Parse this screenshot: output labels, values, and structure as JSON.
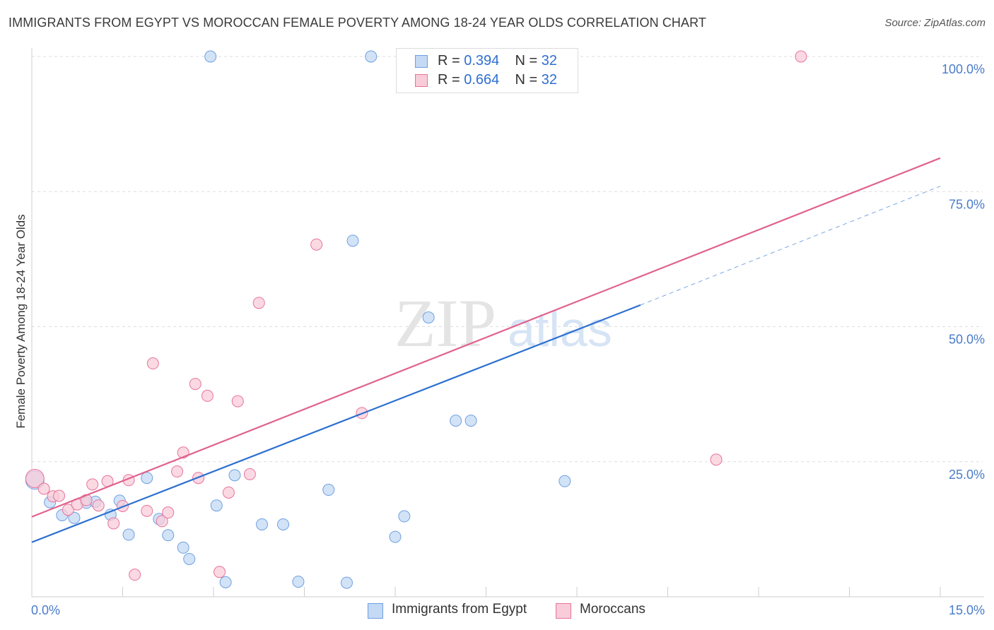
{
  "title": "IMMIGRANTS FROM EGYPT VS MOROCCAN FEMALE POVERTY AMONG 18-24 YEAR OLDS CORRELATION CHART",
  "source": "Source: ZipAtlas.com",
  "watermark": {
    "zip": "ZIP",
    "atlas": "atlas"
  },
  "legend_top": [
    {
      "r_label": "R = ",
      "r_value": "0.394",
      "n_label": "N = ",
      "n_value": "32",
      "color": "#a8c8f0"
    },
    {
      "r_label": "R = ",
      "r_value": "0.664",
      "n_label": "N = ",
      "n_value": "32",
      "color": "#f5b8cb"
    }
  ],
  "legend_bottom": [
    {
      "label": "Immigrants from Egypt",
      "color": "#a8c8f0"
    },
    {
      "label": "Moroccans",
      "color": "#f5b8cb"
    }
  ],
  "chart_data": {
    "type": "scatter",
    "title": "IMMIGRANTS FROM EGYPT VS MOROCCAN FEMALE POVERTY AMONG 18-24 YEAR OLDS CORRELATION CHART",
    "xlabel": "",
    "ylabel": "Female Poverty Among 18-24 Year Olds",
    "xlim": [
      0,
      15
    ],
    "ylim": [
      0,
      100
    ],
    "x_tick_labels": [
      {
        "value": 0,
        "label": "0.0%"
      },
      {
        "value": 15,
        "label": "15.0%"
      }
    ],
    "y_tick_labels": [
      {
        "value": 25,
        "label": "25.0%"
      },
      {
        "value": 50,
        "label": "50.0%"
      },
      {
        "value": 75,
        "label": "75.0%"
      },
      {
        "value": 100,
        "label": "100.0%"
      }
    ],
    "grid": true,
    "legend_position": "top-center",
    "series": [
      {
        "name": "Immigrants from Egypt",
        "color": "#6f9fe0",
        "fill": "#c3d9f4",
        "points": [
          [
            0.05,
            21.6
          ],
          [
            0.3,
            17.5
          ],
          [
            0.5,
            15.1
          ],
          [
            0.7,
            14.6
          ],
          [
            0.9,
            17.4
          ],
          [
            1.05,
            17.6
          ],
          [
            1.3,
            15.2
          ],
          [
            1.45,
            17.8
          ],
          [
            1.6,
            11.5
          ],
          [
            1.9,
            22.0
          ],
          [
            2.1,
            14.4
          ],
          [
            2.25,
            11.4
          ],
          [
            2.5,
            9.1
          ],
          [
            2.6,
            7.0
          ],
          [
            2.95,
            100
          ],
          [
            3.05,
            16.9
          ],
          [
            3.2,
            2.7
          ],
          [
            3.35,
            22.5
          ],
          [
            3.8,
            13.4
          ],
          [
            4.15,
            13.4
          ],
          [
            4.4,
            2.8
          ],
          [
            4.9,
            19.8
          ],
          [
            5.2,
            2.6
          ],
          [
            5.3,
            65.9
          ],
          [
            5.6,
            100
          ],
          [
            6.0,
            11.1
          ],
          [
            6.15,
            14.9
          ],
          [
            6.55,
            51.7
          ],
          [
            7.0,
            32.6
          ],
          [
            7.25,
            32.6
          ],
          [
            8.45,
            100
          ],
          [
            8.8,
            21.4
          ]
        ],
        "trend": {
          "x0": 0,
          "y0": 10.1,
          "x1": 10.05,
          "y1": 54.0,
          "dash_x1": 15.0,
          "dash_y1": 76.0
        }
      },
      {
        "name": "Moroccans",
        "color": "#e8739a",
        "fill": "#f8ccd9",
        "points": [
          [
            0.05,
            21.9
          ],
          [
            0.2,
            20.0
          ],
          [
            0.35,
            18.6
          ],
          [
            0.45,
            18.7
          ],
          [
            0.6,
            16.1
          ],
          [
            0.75,
            17.1
          ],
          [
            0.9,
            17.9
          ],
          [
            1.0,
            20.8
          ],
          [
            1.1,
            16.9
          ],
          [
            1.35,
            13.6
          ],
          [
            1.25,
            21.4
          ],
          [
            1.5,
            16.8
          ],
          [
            1.6,
            21.6
          ],
          [
            1.7,
            4.1
          ],
          [
            1.9,
            15.9
          ],
          [
            2.0,
            43.2
          ],
          [
            2.15,
            14.0
          ],
          [
            2.25,
            15.6
          ],
          [
            2.4,
            23.2
          ],
          [
            2.5,
            26.7
          ],
          [
            2.7,
            39.4
          ],
          [
            2.75,
            22.0
          ],
          [
            2.9,
            37.2
          ],
          [
            3.1,
            4.6
          ],
          [
            3.25,
            19.3
          ],
          [
            3.4,
            36.2
          ],
          [
            3.6,
            22.7
          ],
          [
            3.75,
            54.4
          ],
          [
            4.7,
            65.2
          ],
          [
            5.45,
            34.0
          ],
          [
            11.3,
            25.4
          ],
          [
            12.7,
            100
          ]
        ],
        "trend": {
          "x0": 0,
          "y0": 14.8,
          "x1": 15.0,
          "y1": 81.2
        }
      }
    ]
  }
}
